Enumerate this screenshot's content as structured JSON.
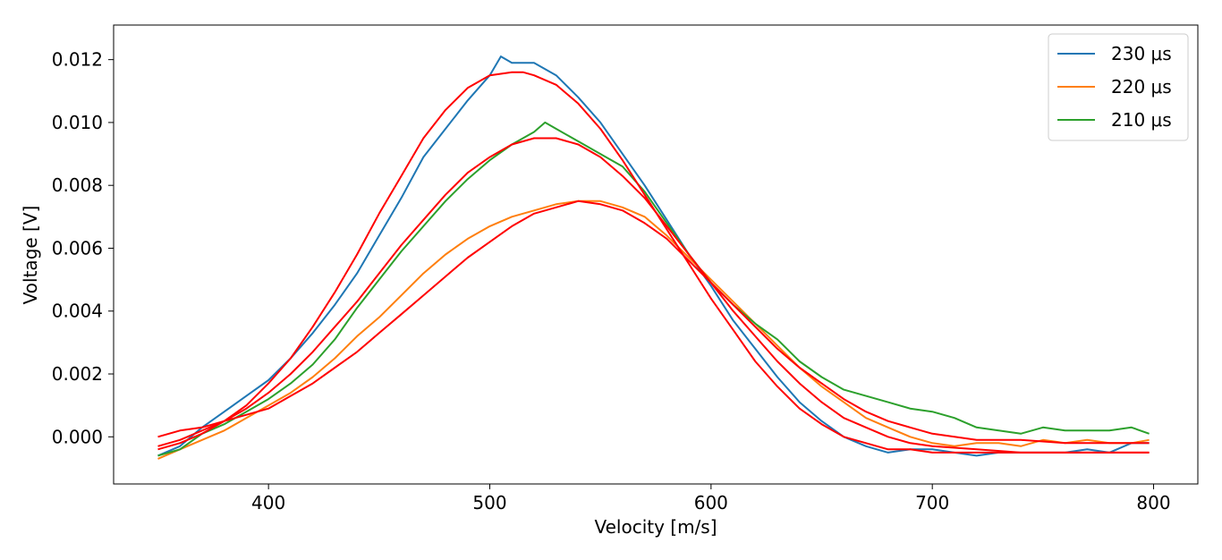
{
  "chart_data": {
    "type": "line",
    "xlabel": "Velocity [m/s]",
    "ylabel": "Voltage [V]",
    "xlim": [
      330,
      820
    ],
    "ylim": [
      -0.0015,
      0.0131
    ],
    "x_ticks": [
      400,
      500,
      600,
      700,
      800
    ],
    "x_tick_labels": [
      "400",
      "500",
      "600",
      "700",
      "800"
    ],
    "y_ticks": [
      0.0,
      0.002,
      0.004,
      0.006,
      0.008,
      0.01,
      0.012
    ],
    "y_tick_labels": [
      "0.000",
      "0.002",
      "0.004",
      "0.006",
      "0.008",
      "0.010",
      "0.012"
    ],
    "grid": false,
    "legend_position": "top-right",
    "series": [
      {
        "name": "230 μs",
        "color": "#1f77b4",
        "x": [
          350,
          360,
          370,
          380,
          390,
          400,
          410,
          420,
          430,
          440,
          450,
          460,
          470,
          480,
          490,
          500,
          505,
          510,
          520,
          530,
          540,
          550,
          560,
          570,
          580,
          590,
          600,
          610,
          620,
          630,
          640,
          650,
          660,
          670,
          680,
          690,
          700,
          710,
          720,
          730,
          740,
          750,
          760,
          770,
          780,
          790,
          798
        ],
        "y": [
          -0.0006,
          -0.0003,
          0.0003,
          0.0008,
          0.0013,
          0.0018,
          0.0025,
          0.0033,
          0.0042,
          0.0052,
          0.0064,
          0.0076,
          0.0089,
          0.0098,
          0.0107,
          0.0115,
          0.0121,
          0.0119,
          0.0119,
          0.0115,
          0.0108,
          0.01,
          0.009,
          0.008,
          0.0069,
          0.0058,
          0.0048,
          0.0037,
          0.0028,
          0.0019,
          0.0011,
          0.0005,
          0.0,
          -0.0003,
          -0.0005,
          -0.0004,
          -0.0004,
          -0.0005,
          -0.0006,
          -0.0005,
          -0.0005,
          -0.0005,
          -0.0005,
          -0.0004,
          -0.0005,
          -0.0002,
          -0.0002
        ]
      },
      {
        "name": "220 μs",
        "color": "#ff7f0e",
        "x": [
          350,
          360,
          370,
          380,
          390,
          400,
          410,
          420,
          430,
          440,
          450,
          460,
          470,
          480,
          490,
          500,
          510,
          520,
          530,
          540,
          550,
          560,
          570,
          580,
          590,
          600,
          610,
          620,
          630,
          640,
          650,
          660,
          670,
          680,
          690,
          700,
          710,
          720,
          730,
          740,
          750,
          760,
          770,
          780,
          790,
          798
        ],
        "y": [
          -0.0007,
          -0.0004,
          -0.0001,
          0.0002,
          0.0006,
          0.001,
          0.0014,
          0.0019,
          0.0025,
          0.0032,
          0.0038,
          0.0045,
          0.0052,
          0.0058,
          0.0063,
          0.0067,
          0.007,
          0.0072,
          0.0074,
          0.0075,
          0.0075,
          0.0073,
          0.007,
          0.0064,
          0.0057,
          0.005,
          0.0043,
          0.0036,
          0.0029,
          0.0022,
          0.0016,
          0.0011,
          0.0006,
          0.0003,
          0.0,
          -0.0002,
          -0.0003,
          -0.0002,
          -0.0002,
          -0.0003,
          -0.0001,
          -0.0002,
          -0.0001,
          -0.0002,
          -0.0002,
          -0.0001
        ]
      },
      {
        "name": "210 μs",
        "color": "#2ca02c",
        "x": [
          350,
          360,
          370,
          380,
          390,
          400,
          410,
          420,
          430,
          440,
          450,
          460,
          470,
          480,
          490,
          500,
          510,
          520,
          525,
          530,
          540,
          550,
          560,
          570,
          580,
          590,
          600,
          610,
          620,
          630,
          640,
          650,
          660,
          670,
          680,
          690,
          700,
          710,
          720,
          730,
          740,
          750,
          760,
          770,
          780,
          790,
          798
        ],
        "y": [
          -0.0006,
          -0.0004,
          0.0001,
          0.0004,
          0.0008,
          0.0012,
          0.0017,
          0.0023,
          0.0031,
          0.0041,
          0.005,
          0.0059,
          0.0067,
          0.0075,
          0.0082,
          0.0088,
          0.0093,
          0.0097,
          0.01,
          0.0098,
          0.0094,
          0.009,
          0.0086,
          0.0078,
          0.0068,
          0.0058,
          0.0049,
          0.0042,
          0.0036,
          0.0031,
          0.0024,
          0.0019,
          0.0015,
          0.0013,
          0.0011,
          0.0009,
          0.0008,
          0.0006,
          0.0003,
          0.0002,
          0.0001,
          0.0003,
          0.0002,
          0.0002,
          0.0002,
          0.0003,
          0.0001
        ]
      }
    ],
    "fits": [
      {
        "color": "#ff0000",
        "x": [
          350,
          360,
          370,
          380,
          390,
          400,
          410,
          420,
          430,
          440,
          450,
          460,
          470,
          480,
          490,
          500,
          510,
          515,
          520,
          530,
          540,
          550,
          560,
          570,
          580,
          590,
          600,
          610,
          620,
          630,
          640,
          650,
          660,
          670,
          680,
          690,
          700,
          710,
          720,
          740,
          760,
          780,
          798
        ],
        "y": [
          -0.0004,
          -0.0002,
          0.0001,
          0.0005,
          0.001,
          0.0017,
          0.0025,
          0.0035,
          0.0046,
          0.0058,
          0.0071,
          0.0083,
          0.0095,
          0.0104,
          0.0111,
          0.0115,
          0.0116,
          0.0116,
          0.0115,
          0.0112,
          0.0106,
          0.0098,
          0.0088,
          0.0077,
          0.0066,
          0.0055,
          0.0044,
          0.0034,
          0.0024,
          0.0016,
          0.0009,
          0.0004,
          0.0,
          -0.0002,
          -0.0004,
          -0.0004,
          -0.0005,
          -0.0005,
          -0.0005,
          -0.0005,
          -0.0005,
          -0.0005,
          -0.0005
        ]
      },
      {
        "color": "#ff0000",
        "x": [
          350,
          360,
          370,
          380,
          390,
          400,
          410,
          420,
          430,
          440,
          450,
          460,
          470,
          480,
          490,
          500,
          510,
          520,
          530,
          540,
          550,
          560,
          570,
          580,
          590,
          600,
          610,
          620,
          630,
          640,
          650,
          660,
          670,
          680,
          690,
          700,
          720,
          740,
          760,
          780,
          798
        ],
        "y": [
          -0.0003,
          -0.0001,
          0.0002,
          0.0005,
          0.0009,
          0.0014,
          0.002,
          0.0027,
          0.0035,
          0.0043,
          0.0052,
          0.0061,
          0.0069,
          0.0077,
          0.0084,
          0.0089,
          0.0093,
          0.0095,
          0.0095,
          0.0093,
          0.0089,
          0.0083,
          0.0076,
          0.0067,
          0.0058,
          0.0049,
          0.004,
          0.0032,
          0.0024,
          0.0017,
          0.0011,
          0.0006,
          0.0003,
          0.0,
          -0.0002,
          -0.0003,
          -0.0004,
          -0.0005,
          -0.0005,
          -0.0005,
          -0.0005
        ]
      },
      {
        "color": "#ff0000",
        "x": [
          350,
          360,
          370,
          380,
          390,
          400,
          410,
          420,
          430,
          440,
          450,
          460,
          470,
          480,
          490,
          500,
          510,
          520,
          530,
          540,
          550,
          560,
          570,
          580,
          590,
          600,
          610,
          620,
          630,
          640,
          650,
          660,
          670,
          680,
          690,
          700,
          720,
          740,
          760,
          780,
          798
        ],
        "y": [
          0.0,
          0.0002,
          0.0003,
          0.0005,
          0.0007,
          0.0009,
          0.0013,
          0.0017,
          0.0022,
          0.0027,
          0.0033,
          0.0039,
          0.0045,
          0.0051,
          0.0057,
          0.0062,
          0.0067,
          0.0071,
          0.0073,
          0.0075,
          0.0074,
          0.0072,
          0.0068,
          0.0063,
          0.0056,
          0.0049,
          0.0042,
          0.0035,
          0.0028,
          0.0022,
          0.0017,
          0.0012,
          0.0008,
          0.0005,
          0.0003,
          0.0001,
          -0.0001,
          -0.0001,
          -0.0002,
          -0.0002,
          -0.0002
        ]
      }
    ]
  }
}
